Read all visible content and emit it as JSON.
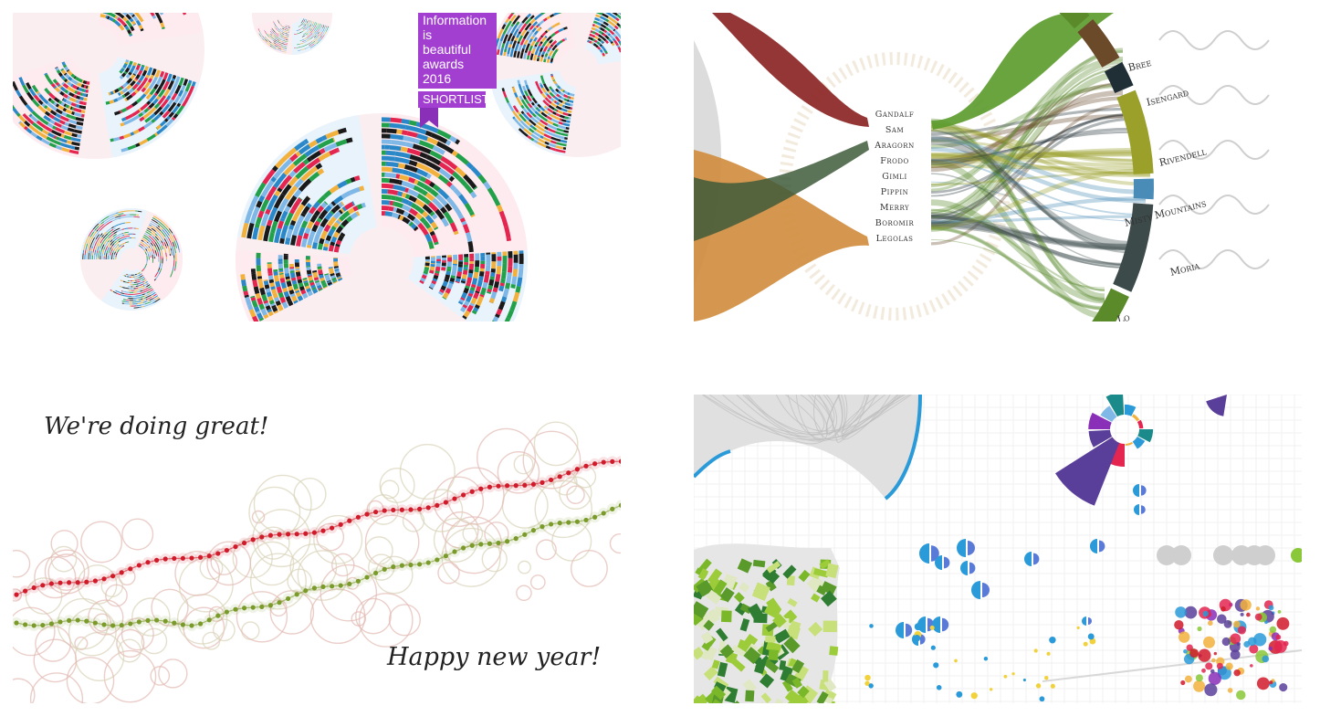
{
  "top_left": {
    "badge_line1": "Information is",
    "badge_line2": "beautiful",
    "badge_line3": "awards 2016",
    "badge_label": "SHORTLIST"
  },
  "top_right": {
    "characters": [
      "Gandalf",
      "Sam",
      "Aragorn",
      "Frodo",
      "Gimli",
      "Pippin",
      "Merry",
      "Boromir",
      "Legolas"
    ],
    "locations": [
      "Bree",
      "Isengard",
      "Rivendell",
      "Misty Mountains",
      "Moria",
      "Lo"
    ]
  },
  "bottom_left": {
    "headline": "We're doing great!",
    "footer": "Happy new year!"
  },
  "colors": {
    "badge": "#a23fd0",
    "series_red": "#d11a2a",
    "series_green": "#7a9a2a",
    "accent_blue": "#2a9ad8",
    "purple": "#5a3f9a"
  }
}
